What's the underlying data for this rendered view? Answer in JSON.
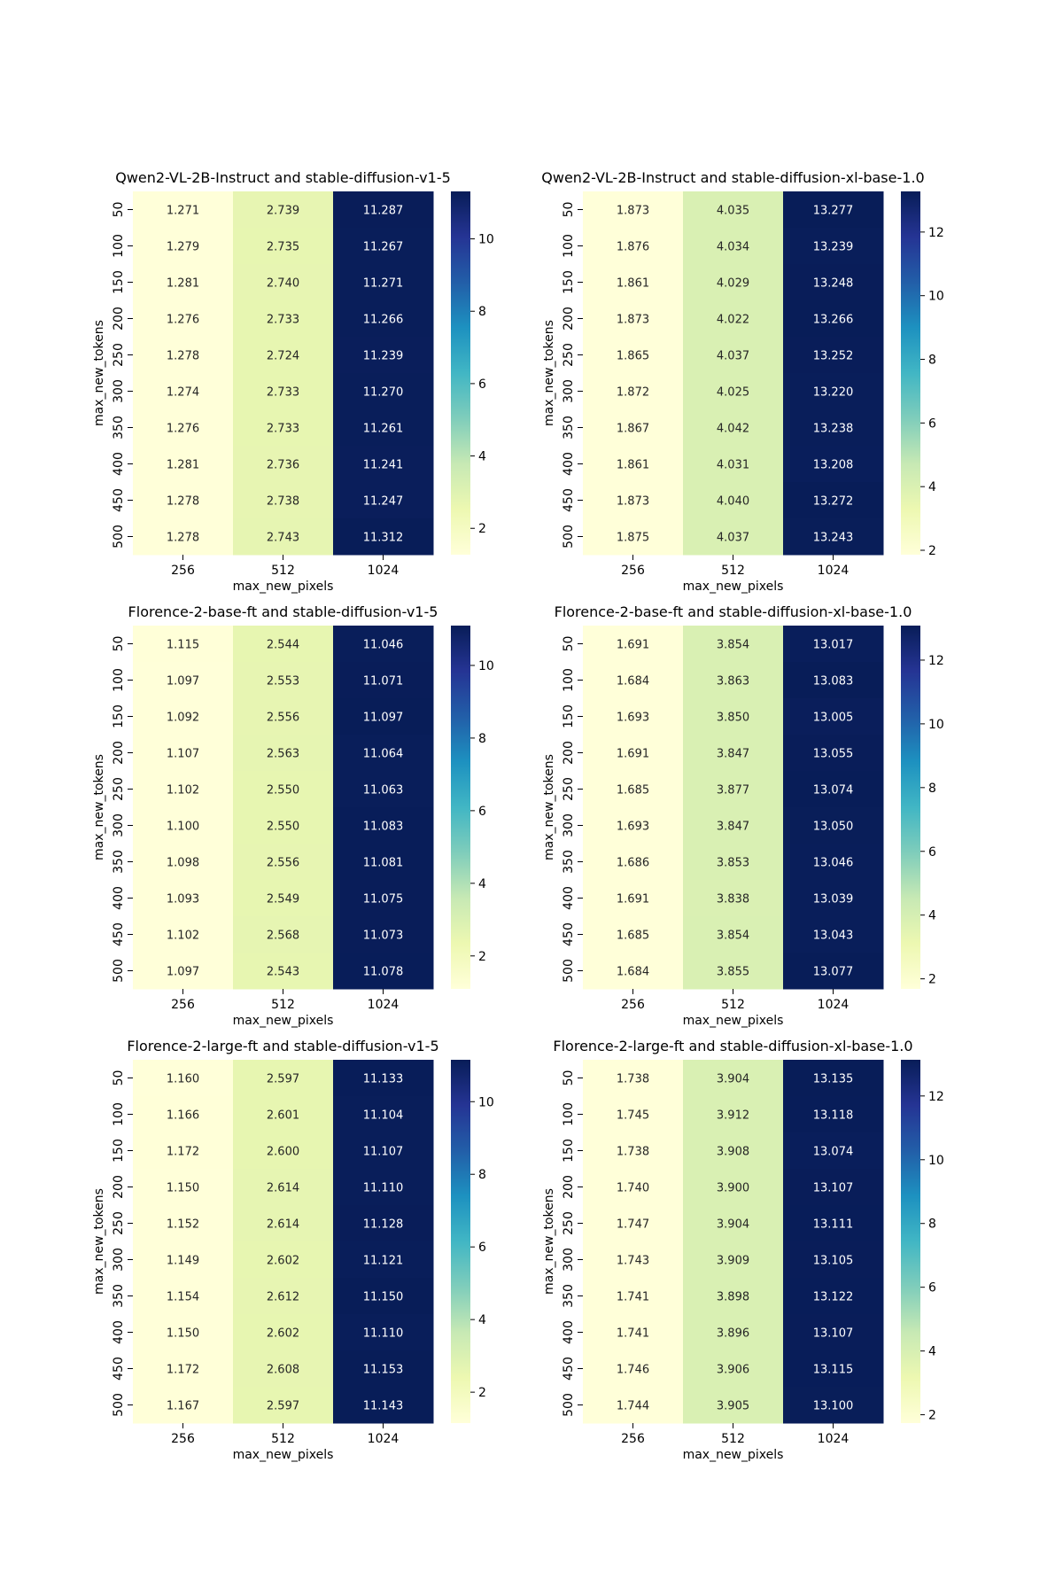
{
  "chart_data": [
    {
      "type": "heatmap",
      "title": "Qwen2-VL-2B-Instruct and stable-diffusion-v1-5",
      "xlabel": "max_new_pixels",
      "ylabel": "max_new_tokens",
      "x_categories": [
        "256",
        "512",
        "1024"
      ],
      "y_categories": [
        "50",
        "100",
        "150",
        "200",
        "250",
        "300",
        "350",
        "400",
        "450",
        "500"
      ],
      "values": [
        [
          1.271,
          2.739,
          11.287
        ],
        [
          1.279,
          2.735,
          11.267
        ],
        [
          1.281,
          2.74,
          11.271
        ],
        [
          1.276,
          2.733,
          11.266
        ],
        [
          1.278,
          2.724,
          11.239
        ],
        [
          1.274,
          2.733,
          11.27
        ],
        [
          1.276,
          2.733,
          11.261
        ],
        [
          1.281,
          2.736,
          11.241
        ],
        [
          1.278,
          2.738,
          11.247
        ],
        [
          1.278,
          2.743,
          11.312
        ]
      ],
      "colorbar_ticks": [
        2,
        4,
        6,
        8,
        10
      ],
      "colormap": "YlGnBu",
      "grid": false
    },
    {
      "type": "heatmap",
      "title": "Qwen2-VL-2B-Instruct and stable-diffusion-xl-base-1.0",
      "xlabel": "max_new_pixels",
      "ylabel": "max_new_tokens",
      "x_categories": [
        "256",
        "512",
        "1024"
      ],
      "y_categories": [
        "50",
        "100",
        "150",
        "200",
        "250",
        "300",
        "350",
        "400",
        "450",
        "500"
      ],
      "values": [
        [
          1.873,
          4.035,
          13.277
        ],
        [
          1.876,
          4.034,
          13.239
        ],
        [
          1.861,
          4.029,
          13.248
        ],
        [
          1.873,
          4.022,
          13.266
        ],
        [
          1.865,
          4.037,
          13.252
        ],
        [
          1.872,
          4.025,
          13.22
        ],
        [
          1.867,
          4.042,
          13.238
        ],
        [
          1.861,
          4.031,
          13.208
        ],
        [
          1.873,
          4.04,
          13.272
        ],
        [
          1.875,
          4.037,
          13.243
        ]
      ],
      "colorbar_ticks": [
        2,
        4,
        6,
        8,
        10,
        12
      ],
      "colormap": "YlGnBu",
      "grid": false
    },
    {
      "type": "heatmap",
      "title": "Florence-2-base-ft and stable-diffusion-v1-5",
      "xlabel": "max_new_pixels",
      "ylabel": "max_new_tokens",
      "x_categories": [
        "256",
        "512",
        "1024"
      ],
      "y_categories": [
        "50",
        "100",
        "150",
        "200",
        "250",
        "300",
        "350",
        "400",
        "450",
        "500"
      ],
      "values": [
        [
          1.115,
          2.544,
          11.046
        ],
        [
          1.097,
          2.553,
          11.071
        ],
        [
          1.092,
          2.556,
          11.097
        ],
        [
          1.107,
          2.563,
          11.064
        ],
        [
          1.102,
          2.55,
          11.063
        ],
        [
          1.1,
          2.55,
          11.083
        ],
        [
          1.098,
          2.556,
          11.081
        ],
        [
          1.093,
          2.549,
          11.075
        ],
        [
          1.102,
          2.568,
          11.073
        ],
        [
          1.097,
          2.543,
          11.078
        ]
      ],
      "colorbar_ticks": [
        2,
        4,
        6,
        8,
        10
      ],
      "colormap": "YlGnBu",
      "grid": false
    },
    {
      "type": "heatmap",
      "title": "Florence-2-base-ft and stable-diffusion-xl-base-1.0",
      "xlabel": "max_new_pixels",
      "ylabel": "max_new_tokens",
      "x_categories": [
        "256",
        "512",
        "1024"
      ],
      "y_categories": [
        "50",
        "100",
        "150",
        "200",
        "250",
        "300",
        "350",
        "400",
        "450",
        "500"
      ],
      "values": [
        [
          1.691,
          3.854,
          13.017
        ],
        [
          1.684,
          3.863,
          13.083
        ],
        [
          1.693,
          3.85,
          13.005
        ],
        [
          1.691,
          3.847,
          13.055
        ],
        [
          1.685,
          3.877,
          13.074
        ],
        [
          1.693,
          3.847,
          13.05
        ],
        [
          1.686,
          3.853,
          13.046
        ],
        [
          1.691,
          3.838,
          13.039
        ],
        [
          1.685,
          3.854,
          13.043
        ],
        [
          1.684,
          3.855,
          13.077
        ]
      ],
      "colorbar_ticks": [
        2,
        4,
        6,
        8,
        10,
        12
      ],
      "colormap": "YlGnBu",
      "grid": false
    },
    {
      "type": "heatmap",
      "title": "Florence-2-large-ft and stable-diffusion-v1-5",
      "xlabel": "max_new_pixels",
      "ylabel": "max_new_tokens",
      "x_categories": [
        "256",
        "512",
        "1024"
      ],
      "y_categories": [
        "50",
        "100",
        "150",
        "200",
        "250",
        "300",
        "350",
        "400",
        "450",
        "500"
      ],
      "values": [
        [
          1.16,
          2.597,
          11.133
        ],
        [
          1.166,
          2.601,
          11.104
        ],
        [
          1.172,
          2.6,
          11.107
        ],
        [
          1.15,
          2.614,
          11.11
        ],
        [
          1.152,
          2.614,
          11.128
        ],
        [
          1.149,
          2.602,
          11.121
        ],
        [
          1.154,
          2.612,
          11.15
        ],
        [
          1.15,
          2.602,
          11.11
        ],
        [
          1.172,
          2.608,
          11.153
        ],
        [
          1.167,
          2.597,
          11.143
        ]
      ],
      "colorbar_ticks": [
        2,
        4,
        6,
        8,
        10
      ],
      "colormap": "YlGnBu",
      "grid": false
    },
    {
      "type": "heatmap",
      "title": "Florence-2-large-ft and stable-diffusion-xl-base-1.0",
      "xlabel": "max_new_pixels",
      "ylabel": "max_new_tokens",
      "x_categories": [
        "256",
        "512",
        "1024"
      ],
      "y_categories": [
        "50",
        "100",
        "150",
        "200",
        "250",
        "300",
        "350",
        "400",
        "450",
        "500"
      ],
      "values": [
        [
          1.738,
          3.904,
          13.135
        ],
        [
          1.745,
          3.912,
          13.118
        ],
        [
          1.738,
          3.908,
          13.074
        ],
        [
          1.74,
          3.9,
          13.107
        ],
        [
          1.747,
          3.904,
          13.111
        ],
        [
          1.743,
          3.909,
          13.105
        ],
        [
          1.741,
          3.898,
          13.122
        ],
        [
          1.741,
          3.896,
          13.107
        ],
        [
          1.746,
          3.906,
          13.115
        ],
        [
          1.744,
          3.905,
          13.1
        ]
      ],
      "colorbar_ticks": [
        2,
        4,
        6,
        8,
        10,
        12
      ],
      "colormap": "YlGnBu",
      "grid": false
    }
  ]
}
